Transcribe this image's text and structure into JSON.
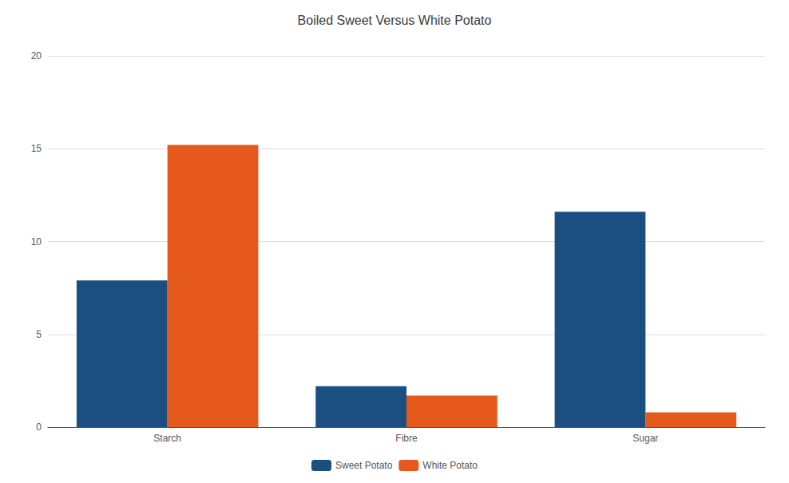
{
  "chart_data": {
    "type": "bar",
    "title": "Boiled Sweet Versus White Potato",
    "categories": [
      "Starch",
      "Fibre",
      "Sugar"
    ],
    "series": [
      {
        "name": "Sweet Potato",
        "color": "#1b4f82",
        "values": [
          7.9,
          2.2,
          11.6
        ]
      },
      {
        "name": "White Potato",
        "color": "#e55a1c",
        "values": [
          15.2,
          1.7,
          0.8
        ]
      }
    ],
    "ylim": [
      0,
      20
    ],
    "yticks": [
      0,
      5,
      10,
      15,
      20
    ],
    "grid": true,
    "legend": "bottom"
  }
}
